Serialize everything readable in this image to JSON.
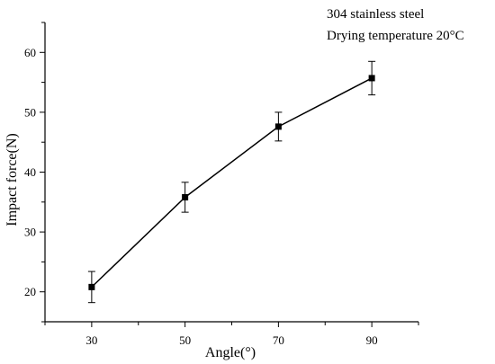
{
  "chart_data": {
    "type": "line",
    "x": [
      30,
      50,
      70,
      90
    ],
    "y": [
      20.8,
      35.8,
      47.6,
      55.7
    ],
    "error": [
      2.6,
      2.5,
      2.4,
      2.8
    ],
    "xlabel": "Angle(°)",
    "ylabel": "Impact force(N)",
    "xlim": [
      20,
      100
    ],
    "ylim": [
      15,
      65
    ],
    "xticks": [
      30,
      50,
      70,
      90
    ],
    "yticks": [
      20,
      30,
      40,
      50,
      60
    ],
    "annotations": [
      "304 stainless steel",
      "Drying temperature 20°C"
    ],
    "marker": "square",
    "color": "#000000",
    "grid": false
  }
}
